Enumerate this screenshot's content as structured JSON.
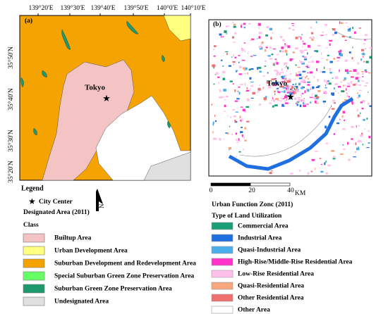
{
  "panel_a": {
    "label": "(a)",
    "city_label": "Tokyo",
    "lon_labels": [
      "139°20'E",
      "139°30'E",
      "139°40'E",
      "139°50'E",
      "140°0'E",
      "140°10'E"
    ],
    "lat_labels": [
      "35°50'N",
      "35°40'N",
      "35°30'N",
      "35°20'N"
    ]
  },
  "panel_b": {
    "label": "(b)",
    "city_label": "Tokyo",
    "scale_labels": [
      "0",
      "20",
      "40"
    ],
    "scale_unit": "KM"
  },
  "north_label": "N",
  "legend_a": {
    "heading": "Legend",
    "city_center": "City Center",
    "title": "Designated Area (2011)",
    "class_heading": "Class",
    "items": [
      {
        "label": "Builtup Area",
        "color": "#f4c3c3"
      },
      {
        "label": "Urban Development Area",
        "color": "#ffff80"
      },
      {
        "label": "Suburban Development and Redevelopment Area",
        "color": "#f5a300"
      },
      {
        "label": "Special Suburban Green Zone Preservation Area",
        "color": "#66ff66"
      },
      {
        "label": "Suburban Green Zone Preservation Area",
        "color": "#1d9a6c"
      },
      {
        "label": "Undesignated Area",
        "color": "#e0e0e0"
      }
    ]
  },
  "legend_b": {
    "title": "Urban Function Zonc (2011)",
    "subtitle": "Type of Land Utilization",
    "items": [
      {
        "label": "Commercial Area",
        "color": "#1a9e77"
      },
      {
        "label": "Industrial Area",
        "color": "#1f6fe0"
      },
      {
        "label": "Quasi-Industrial Area",
        "color": "#4aaeea"
      },
      {
        "label": "High-Rise/Middle-Rise Residential Area",
        "color": "#ff33cc"
      },
      {
        "label": "Low-Rise Residential Area",
        "color": "#ffc0ea"
      },
      {
        "label": "Quasi-Residential Area",
        "color": "#f7a67e"
      },
      {
        "label": "Other Residential Area",
        "color": "#f07070"
      },
      {
        "label": "Other Area",
        "color": "#ffffff"
      }
    ]
  }
}
